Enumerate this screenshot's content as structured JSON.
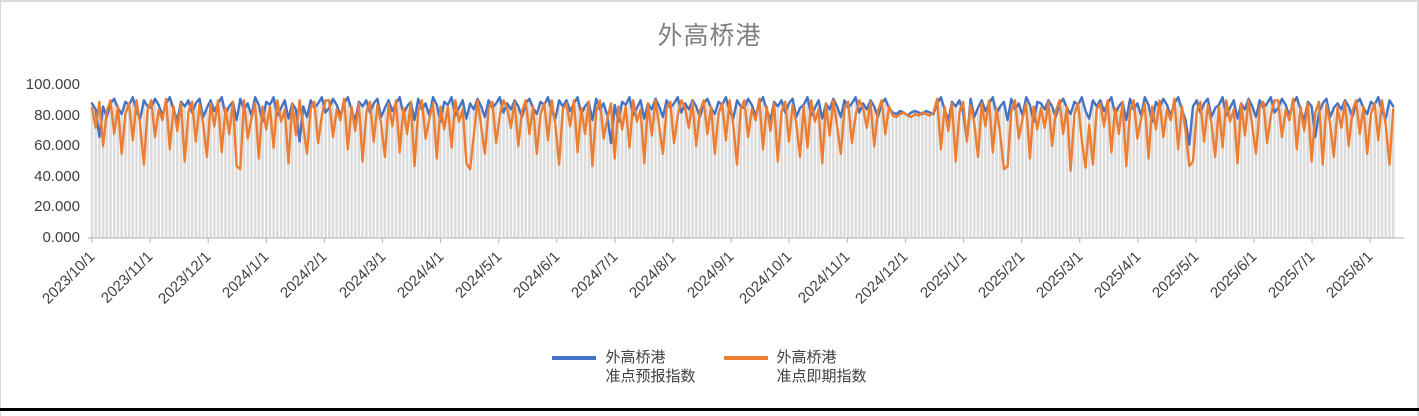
{
  "chart": {
    "title_color": "#7f7f7f",
    "axis_color": "#bfbfbf",
    "label_color": "#404040",
    "frame_border_color": "#d9d9d9",
    "bottom_rule_color": "#000000"
  },
  "legend": {
    "items": [
      {
        "line1": "外高桥港",
        "line2": "准点预报指数"
      },
      {
        "line1": "外高桥港",
        "line2": "准点即期指数"
      }
    ]
  },
  "chart_data": {
    "type": "line",
    "title": "外高桥港",
    "ylim": [
      0,
      100
    ],
    "grid": false,
    "legend_position": "bottom",
    "droplines": true,
    "dropline_color": "#dcdcdc",
    "y_tick_values": [
      100,
      80,
      60,
      40,
      20,
      0
    ],
    "y_tick_labels": [
      "100.000",
      "80.000",
      "60.000",
      "40.000",
      "20.000",
      "0.000"
    ],
    "x_tick_labels": [
      "2023/10/1",
      "2023/11/1",
      "2023/12/1",
      "2024/1/1",
      "2024/2/1",
      "2024/3/1",
      "2024/4/1",
      "2024/5/1",
      "2024/6/1",
      "2024/7/1",
      "2024/8/1",
      "2024/9/1",
      "2024/10/1",
      "2024/11/1",
      "2024/12/1",
      "2025/1/1",
      "2025/2/1",
      "2025/3/1",
      "2025/4/1",
      "2025/5/1",
      "2025/6/1",
      "2025/7/1",
      "2025/8/1"
    ],
    "series": [
      {
        "name": "外高桥港准点预报指数",
        "color": "#4472c4",
        "values": [
          88,
          84,
          66,
          86,
          79,
          88,
          91,
          85,
          81,
          89,
          87,
          92,
          83,
          78,
          90,
          86,
          85,
          91,
          87,
          80,
          88,
          92,
          84,
          77,
          89,
          86,
          90,
          82,
          88,
          91,
          79,
          85,
          90,
          83,
          88,
          92,
          81,
          86,
          89,
          77,
          91,
          84,
          88,
          80,
          92,
          87,
          76,
          89,
          87,
          92,
          80,
          85,
          90,
          78,
          88,
          84,
          63,
          86,
          79,
          90,
          85,
          88,
          92,
          82,
          85,
          91,
          87,
          80,
          88,
          92,
          84,
          77,
          89,
          86,
          90,
          82,
          88,
          91,
          79,
          85,
          90,
          83,
          88,
          92,
          81,
          86,
          89,
          77,
          91,
          84,
          88,
          80,
          92,
          87,
          76,
          89,
          87,
          92,
          80,
          85,
          90,
          78,
          88,
          84,
          91,
          86,
          79,
          90,
          85,
          88,
          92,
          82,
          88,
          84,
          90,
          86,
          79,
          88,
          91,
          85,
          81,
          89,
          87,
          92,
          83,
          78,
          90,
          86,
          90,
          83,
          88,
          92,
          81,
          86,
          89,
          77,
          91,
          84,
          88,
          80,
          62,
          87,
          76,
          89,
          87,
          92,
          80,
          85,
          90,
          78,
          88,
          84,
          91,
          86,
          79,
          90,
          85,
          88,
          92,
          82,
          88,
          84,
          90,
          86,
          79,
          88,
          91,
          85,
          81,
          89,
          87,
          92,
          83,
          78,
          90,
          86,
          85,
          91,
          87,
          80,
          88,
          92,
          84,
          77,
          89,
          86,
          90,
          82,
          88,
          91,
          79,
          85,
          87,
          92,
          80,
          85,
          90,
          78,
          88,
          84,
          91,
          86,
          79,
          90,
          85,
          88,
          92,
          82,
          88,
          84,
          90,
          86,
          79,
          88,
          91,
          85,
          82,
          81,
          83,
          82,
          80,
          82,
          83,
          82,
          81,
          83,
          82,
          81,
          88,
          92,
          84,
          77,
          89,
          86,
          90,
          82,
          64,
          91,
          79,
          85,
          90,
          83,
          88,
          92,
          81,
          86,
          89,
          77,
          91,
          84,
          88,
          80,
          92,
          87,
          76,
          89,
          88,
          84,
          90,
          86,
          79,
          88,
          91,
          85,
          81,
          89,
          87,
          92,
          83,
          78,
          90,
          86,
          90,
          83,
          88,
          92,
          81,
          86,
          89,
          77,
          91,
          84,
          88,
          80,
          92,
          87,
          76,
          89,
          85,
          91,
          87,
          80,
          88,
          92,
          84,
          77,
          61,
          86,
          90,
          82,
          88,
          91,
          79,
          85,
          87,
          92,
          80,
          85,
          90,
          78,
          88,
          84,
          91,
          86,
          79,
          90,
          85,
          88,
          92,
          82,
          85,
          91,
          87,
          80,
          88,
          92,
          84,
          77,
          89,
          86,
          66,
          82,
          88,
          91,
          79,
          85,
          88,
          84,
          90,
          86,
          79,
          88,
          91,
          85,
          81,
          89,
          87,
          92,
          83,
          78,
          90,
          86
        ]
      },
      {
        "name": "外高桥港准点即期指数",
        "color": "#ed7d31",
        "values": [
          85,
          72,
          89,
          60,
          83,
          90,
          68,
          86,
          55,
          81,
          88,
          64,
          90,
          74,
          48,
          84,
          90,
          66,
          84,
          77,
          91,
          58,
          86,
          70,
          88,
          50,
          82,
          89,
          63,
          87,
          75,
          53,
          88,
          73,
          90,
          56,
          85,
          68,
          89,
          47,
          45,
          90,
          65,
          78,
          88,
          52,
          86,
          71,
          86,
          59,
          90,
          76,
          84,
          49,
          88,
          67,
          90,
          73,
          55,
          85,
          89,
          62,
          80,
          90,
          90,
          66,
          84,
          77,
          91,
          58,
          86,
          70,
          88,
          50,
          82,
          89,
          63,
          87,
          75,
          53,
          88,
          73,
          90,
          56,
          85,
          68,
          89,
          47,
          83,
          90,
          65,
          78,
          88,
          52,
          86,
          71,
          86,
          59,
          90,
          76,
          84,
          49,
          45,
          67,
          90,
          73,
          55,
          85,
          89,
          62,
          80,
          90,
          85,
          72,
          89,
          60,
          83,
          90,
          68,
          86,
          55,
          81,
          88,
          64,
          90,
          74,
          48,
          84,
          88,
          73,
          90,
          56,
          85,
          68,
          89,
          47,
          83,
          90,
          65,
          78,
          88,
          52,
          86,
          71,
          86,
          59,
          90,
          76,
          84,
          49,
          88,
          67,
          90,
          73,
          55,
          85,
          89,
          62,
          80,
          90,
          85,
          72,
          89,
          60,
          83,
          90,
          68,
          86,
          55,
          81,
          88,
          64,
          90,
          74,
          48,
          84,
          90,
          66,
          84,
          77,
          91,
          58,
          86,
          70,
          88,
          50,
          82,
          89,
          63,
          87,
          75,
          53,
          86,
          59,
          90,
          76,
          84,
          49,
          88,
          67,
          90,
          73,
          55,
          85,
          89,
          62,
          80,
          90,
          85,
          72,
          89,
          60,
          83,
          90,
          68,
          86,
          80,
          79,
          81,
          82,
          80,
          79,
          81,
          80,
          82,
          81,
          80,
          82,
          91,
          58,
          86,
          70,
          88,
          50,
          82,
          89,
          63,
          87,
          75,
          53,
          88,
          73,
          90,
          56,
          85,
          68,
          45,
          47,
          83,
          90,
          65,
          78,
          88,
          52,
          86,
          71,
          85,
          72,
          89,
          60,
          83,
          90,
          68,
          86,
          44,
          81,
          88,
          64,
          46,
          74,
          48,
          84,
          88,
          73,
          90,
          56,
          85,
          68,
          89,
          47,
          83,
          90,
          65,
          78,
          88,
          52,
          86,
          71,
          90,
          66,
          84,
          77,
          91,
          58,
          86,
          70,
          47,
          50,
          82,
          89,
          63,
          87,
          75,
          53,
          86,
          59,
          90,
          76,
          84,
          49,
          88,
          67,
          90,
          73,
          55,
          85,
          89,
          62,
          80,
          90,
          90,
          66,
          84,
          77,
          91,
          58,
          86,
          70,
          88,
          50,
          82,
          89,
          48,
          87,
          75,
          53,
          85,
          72,
          89,
          60,
          83,
          90,
          68,
          86,
          55,
          81,
          88,
          64,
          90,
          74,
          48,
          84
        ]
      }
    ]
  }
}
